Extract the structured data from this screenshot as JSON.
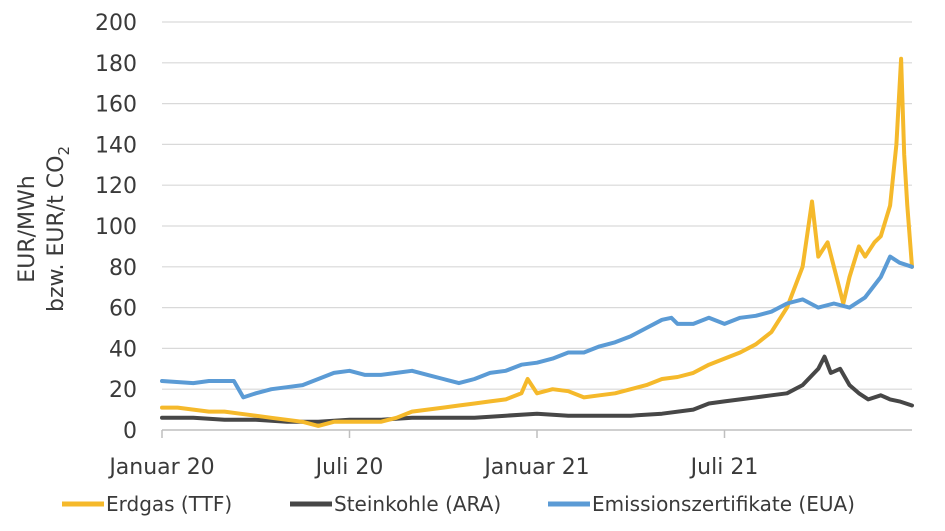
{
  "chart_data": {
    "type": "line",
    "ylabel_line1": "EUR/MWh",
    "ylabel_line2_main": "bzw. EUR/t CO",
    "ylabel_line2_sub": "2",
    "ylim": [
      0,
      200
    ],
    "yticks": [
      "0",
      "20",
      "40",
      "60",
      "80",
      "100",
      "120",
      "140",
      "160",
      "180",
      "200"
    ],
    "xticks": [
      {
        "label": "Januar 20",
        "t": 0
      },
      {
        "label": "Juli 20",
        "t": 6
      },
      {
        "label": "Januar 21",
        "t": 12
      },
      {
        "label": "Juli 21",
        "t": 18
      }
    ],
    "xlim": [
      0,
      24
    ],
    "series": [
      {
        "name": "Erdgas (TTF)",
        "color": "#F5B92B",
        "points": [
          [
            0,
            11
          ],
          [
            0.5,
            11
          ],
          [
            1,
            10
          ],
          [
            1.5,
            9
          ],
          [
            2,
            9
          ],
          [
            2.5,
            8
          ],
          [
            3,
            7
          ],
          [
            3.5,
            6
          ],
          [
            4,
            5
          ],
          [
            4.5,
            4
          ],
          [
            5,
            2
          ],
          [
            5.5,
            4
          ],
          [
            6,
            4
          ],
          [
            6.5,
            4
          ],
          [
            7,
            4
          ],
          [
            7.5,
            6
          ],
          [
            8,
            9
          ],
          [
            8.5,
            10
          ],
          [
            9,
            11
          ],
          [
            9.5,
            12
          ],
          [
            10,
            13
          ],
          [
            10.5,
            14
          ],
          [
            11,
            15
          ],
          [
            11.5,
            18
          ],
          [
            11.7,
            25
          ],
          [
            12,
            18
          ],
          [
            12.5,
            20
          ],
          [
            13,
            19
          ],
          [
            13.5,
            16
          ],
          [
            14,
            17
          ],
          [
            14.5,
            18
          ],
          [
            15,
            20
          ],
          [
            15.5,
            22
          ],
          [
            16,
            25
          ],
          [
            16.5,
            26
          ],
          [
            17,
            28
          ],
          [
            17.5,
            32
          ],
          [
            18,
            35
          ],
          [
            18.5,
            38
          ],
          [
            19,
            42
          ],
          [
            19.5,
            48
          ],
          [
            20,
            60
          ],
          [
            20.5,
            80
          ],
          [
            20.8,
            112
          ],
          [
            21,
            85
          ],
          [
            21.3,
            92
          ],
          [
            21.5,
            80
          ],
          [
            21.8,
            62
          ],
          [
            22,
            75
          ],
          [
            22.3,
            90
          ],
          [
            22.5,
            85
          ],
          [
            22.8,
            92
          ],
          [
            23,
            95
          ],
          [
            23.3,
            110
          ],
          [
            23.5,
            140
          ],
          [
            23.65,
            182
          ],
          [
            23.75,
            135
          ],
          [
            23.85,
            110
          ],
          [
            24,
            80
          ]
        ]
      },
      {
        "name": "Steinkohle (ARA)",
        "color": "#474747",
        "points": [
          [
            0,
            6
          ],
          [
            1,
            6
          ],
          [
            2,
            5
          ],
          [
            3,
            5
          ],
          [
            4,
            4
          ],
          [
            5,
            4
          ],
          [
            6,
            5
          ],
          [
            7,
            5
          ],
          [
            8,
            6
          ],
          [
            9,
            6
          ],
          [
            10,
            6
          ],
          [
            11,
            7
          ],
          [
            12,
            8
          ],
          [
            13,
            7
          ],
          [
            14,
            7
          ],
          [
            15,
            7
          ],
          [
            16,
            8
          ],
          [
            17,
            10
          ],
          [
            17.5,
            13
          ],
          [
            18,
            14
          ],
          [
            18.5,
            15
          ],
          [
            19,
            16
          ],
          [
            19.5,
            17
          ],
          [
            20,
            18
          ],
          [
            20.5,
            22
          ],
          [
            21,
            30
          ],
          [
            21.2,
            36
          ],
          [
            21.4,
            28
          ],
          [
            21.7,
            30
          ],
          [
            22,
            22
          ],
          [
            22.3,
            18
          ],
          [
            22.6,
            15
          ],
          [
            23,
            17
          ],
          [
            23.3,
            15
          ],
          [
            23.6,
            14
          ],
          [
            24,
            12
          ]
        ]
      },
      {
        "name": "Emissionszertifikate (EUA)",
        "color": "#5B9BD5",
        "points": [
          [
            0,
            24
          ],
          [
            1,
            23
          ],
          [
            1.5,
            24
          ],
          [
            2.3,
            24
          ],
          [
            2.6,
            16
          ],
          [
            3,
            18
          ],
          [
            3.5,
            20
          ],
          [
            4,
            21
          ],
          [
            4.5,
            22
          ],
          [
            5,
            25
          ],
          [
            5.5,
            28
          ],
          [
            6,
            29
          ],
          [
            6.5,
            27
          ],
          [
            7,
            27
          ],
          [
            7.5,
            28
          ],
          [
            8,
            29
          ],
          [
            8.5,
            27
          ],
          [
            9,
            25
          ],
          [
            9.5,
            23
          ],
          [
            10,
            25
          ],
          [
            10.5,
            28
          ],
          [
            11,
            29
          ],
          [
            11.5,
            32
          ],
          [
            12,
            33
          ],
          [
            12.5,
            35
          ],
          [
            13,
            38
          ],
          [
            13.5,
            38
          ],
          [
            14,
            41
          ],
          [
            14.5,
            43
          ],
          [
            15,
            46
          ],
          [
            15.5,
            50
          ],
          [
            16,
            54
          ],
          [
            16.3,
            55
          ],
          [
            16.5,
            52
          ],
          [
            17,
            52
          ],
          [
            17.5,
            55
          ],
          [
            18,
            52
          ],
          [
            18.5,
            55
          ],
          [
            19,
            56
          ],
          [
            19.5,
            58
          ],
          [
            20,
            62
          ],
          [
            20.5,
            64
          ],
          [
            21,
            60
          ],
          [
            21.5,
            62
          ],
          [
            22,
            60
          ],
          [
            22.5,
            65
          ],
          [
            23,
            75
          ],
          [
            23.3,
            85
          ],
          [
            23.6,
            82
          ],
          [
            24,
            80
          ]
        ]
      }
    ],
    "legend": [
      "Erdgas (TTF)",
      "Steinkohle (ARA)",
      "Emissionszertifikate (EUA)"
    ],
    "grid": "horizontal",
    "legend_position": "bottom"
  }
}
